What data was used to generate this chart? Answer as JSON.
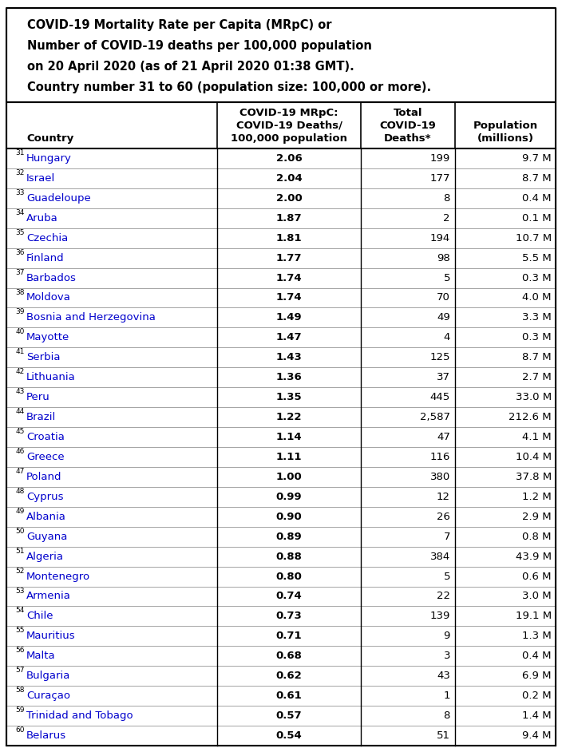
{
  "title_lines": [
    "COVID-19 Mortality Rate per Capita (MRpC) or",
    "Number of COVID-19 deaths per 100,000 population",
    "on 20 April 2020 (as of 21 April 2020 01:38 GMT).",
    "Country number 31 to 60 (population size: 100,000 or more)."
  ],
  "col_headers_line1": [
    "",
    "COVID-19 MRpC:",
    "Total",
    ""
  ],
  "col_headers_line2": [
    "",
    "COVID-19 Deaths/",
    "COVID-19",
    "Population"
  ],
  "col_headers_line3": [
    "Country",
    "100,000 population",
    "Deaths*",
    "(millions)"
  ],
  "rows": [
    [
      31,
      "Hungary",
      "2.06",
      "199",
      "9.7 M"
    ],
    [
      32,
      "Israel",
      "2.04",
      "177",
      "8.7 M"
    ],
    [
      33,
      "Guadeloupe",
      "2.00",
      "8",
      "0.4 M"
    ],
    [
      34,
      "Aruba",
      "1.87",
      "2",
      "0.1 M"
    ],
    [
      35,
      "Czechia",
      "1.81",
      "194",
      "10.7 M"
    ],
    [
      36,
      "Finland",
      "1.77",
      "98",
      "5.5 M"
    ],
    [
      37,
      "Barbados",
      "1.74",
      "5",
      "0.3 M"
    ],
    [
      38,
      "Moldova",
      "1.74",
      "70",
      "4.0 M"
    ],
    [
      39,
      "Bosnia and Herzegovina",
      "1.49",
      "49",
      "3.3 M"
    ],
    [
      40,
      "Mayotte",
      "1.47",
      "4",
      "0.3 M"
    ],
    [
      41,
      "Serbia",
      "1.43",
      "125",
      "8.7 M"
    ],
    [
      42,
      "Lithuania",
      "1.36",
      "37",
      "2.7 M"
    ],
    [
      43,
      "Peru",
      "1.35",
      "445",
      "33.0 M"
    ],
    [
      44,
      "Brazil",
      "1.22",
      "2,587",
      "212.6 M"
    ],
    [
      45,
      "Croatia",
      "1.14",
      "47",
      "4.1 M"
    ],
    [
      46,
      "Greece",
      "1.11",
      "116",
      "10.4 M"
    ],
    [
      47,
      "Poland",
      "1.00",
      "380",
      "37.8 M"
    ],
    [
      48,
      "Cyprus",
      "0.99",
      "12",
      "1.2 M"
    ],
    [
      49,
      "Albania",
      "0.90",
      "26",
      "2.9 M"
    ],
    [
      50,
      "Guyana",
      "0.89",
      "7",
      "0.8 M"
    ],
    [
      51,
      "Algeria",
      "0.88",
      "384",
      "43.9 M"
    ],
    [
      52,
      "Montenegro",
      "0.80",
      "5",
      "0.6 M"
    ],
    [
      53,
      "Armenia",
      "0.74",
      "22",
      "3.0 M"
    ],
    [
      54,
      "Chile",
      "0.73",
      "139",
      "19.1 M"
    ],
    [
      55,
      "Mauritius",
      "0.71",
      "9",
      "1.3 M"
    ],
    [
      56,
      "Malta",
      "0.68",
      "3",
      "0.4 M"
    ],
    [
      57,
      "Bulgaria",
      "0.62",
      "43",
      "6.9 M"
    ],
    [
      58,
      "Curaçao",
      "0.61",
      "1",
      "0.2 M"
    ],
    [
      59,
      "Trinidad and Tobago",
      "0.57",
      "8",
      "1.4 M"
    ],
    [
      60,
      "Belarus",
      "0.54",
      "51",
      "9.4 M"
    ]
  ],
  "bg_color": "#ffffff",
  "text_color_black": "#000000",
  "text_color_blue": "#0000cc",
  "border_color_dark": "#000000",
  "border_color_light": "#a0a0a0",
  "row_line_color": "#808080"
}
